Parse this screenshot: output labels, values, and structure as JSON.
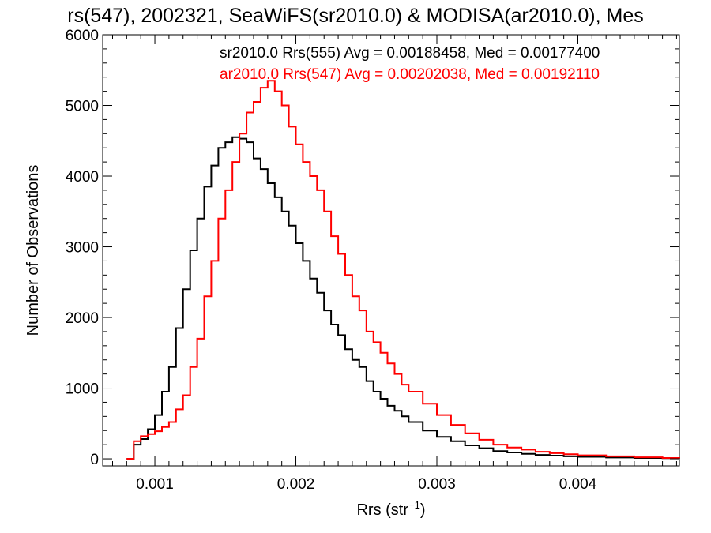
{
  "chart_data": {
    "type": "histogram",
    "title": "rs(547), 2002321, SeaWiFS(sr2010.0) & MODISA(ar2010.0), Mes",
    "xlabel": "Rrs (str",
    "xlabel_sup": "−1",
    "xlabel_close": ")",
    "ylabel": "Number of Observations",
    "xlim": [
      0.00063,
      0.00472
    ],
    "ylim": [
      -100,
      6000
    ],
    "x_ticks": [
      0.001,
      0.002,
      0.003,
      0.004
    ],
    "x_tick_labels": [
      "0.001",
      "0.002",
      "0.003",
      "0.004"
    ],
    "y_ticks": [
      0,
      1000,
      2000,
      3000,
      4000,
      5000,
      6000
    ],
    "y_tick_labels": [
      "0",
      "1000",
      "2000",
      "3000",
      "4000",
      "5000",
      "6000"
    ],
    "legend_placement": "top-right",
    "grid": false,
    "series": [
      {
        "name": "sr2010.0 Rrs(555) Avg = 0.00188458, Med = 0.00177400",
        "color": "#000000",
        "x": [
          0.0008,
          0.00085,
          0.0009,
          0.00095,
          0.001,
          0.00105,
          0.0011,
          0.00115,
          0.0012,
          0.00125,
          0.0013,
          0.00135,
          0.0014,
          0.00145,
          0.0015,
          0.00155,
          0.0016,
          0.00165,
          0.0017,
          0.00175,
          0.0018,
          0.00185,
          0.0019,
          0.00195,
          0.002,
          0.00205,
          0.0021,
          0.00215,
          0.0022,
          0.00225,
          0.0023,
          0.00235,
          0.0024,
          0.00245,
          0.0025,
          0.00255,
          0.0026,
          0.00265,
          0.0027,
          0.00275,
          0.0028,
          0.0029,
          0.003,
          0.0031,
          0.0032,
          0.0033,
          0.0034,
          0.0035,
          0.0036,
          0.0037,
          0.0038,
          0.0039,
          0.004,
          0.0042,
          0.0044,
          0.0046,
          0.00472
        ],
        "values": [
          0,
          200,
          280,
          420,
          620,
          950,
          1300,
          1850,
          2400,
          2950,
          3400,
          3850,
          4150,
          4400,
          4480,
          4550,
          4530,
          4480,
          4250,
          4100,
          3900,
          3700,
          3500,
          3300,
          3050,
          2800,
          2550,
          2350,
          2100,
          1900,
          1750,
          1550,
          1400,
          1300,
          1100,
          950,
          850,
          750,
          680,
          600,
          520,
          400,
          310,
          250,
          190,
          150,
          110,
          90,
          70,
          55,
          45,
          35,
          28,
          18,
          12,
          8,
          5
        ]
      },
      {
        "name": "ar2010.0 Rrs(547) Avg = 0.00202038, Med = 0.00192110",
        "color": "#ff0000",
        "x": [
          0.0008,
          0.00085,
          0.0009,
          0.00095,
          0.001,
          0.00105,
          0.0011,
          0.00115,
          0.0012,
          0.00125,
          0.0013,
          0.00135,
          0.0014,
          0.00145,
          0.0015,
          0.00155,
          0.0016,
          0.00165,
          0.0017,
          0.00175,
          0.0018,
          0.00185,
          0.0019,
          0.00195,
          0.002,
          0.00205,
          0.0021,
          0.00215,
          0.0022,
          0.00225,
          0.0023,
          0.00235,
          0.0024,
          0.00245,
          0.0025,
          0.00255,
          0.0026,
          0.00265,
          0.0027,
          0.00275,
          0.0028,
          0.0029,
          0.003,
          0.0031,
          0.0032,
          0.0033,
          0.0034,
          0.0035,
          0.0036,
          0.0037,
          0.0038,
          0.0039,
          0.004,
          0.0042,
          0.0044,
          0.0046,
          0.00472
        ],
        "values": [
          0,
          250,
          320,
          350,
          390,
          450,
          520,
          700,
          900,
          1300,
          1700,
          2300,
          2800,
          3400,
          3800,
          4200,
          4600,
          4900,
          5050,
          5250,
          5350,
          5200,
          5000,
          4700,
          4450,
          4200,
          4000,
          3800,
          3500,
          3150,
          2900,
          2600,
          2300,
          2100,
          1800,
          1650,
          1500,
          1350,
          1200,
          1050,
          950,
          780,
          620,
          480,
          360,
          270,
          200,
          160,
          130,
          100,
          80,
          65,
          50,
          35,
          22,
          12,
          8
        ]
      }
    ]
  }
}
